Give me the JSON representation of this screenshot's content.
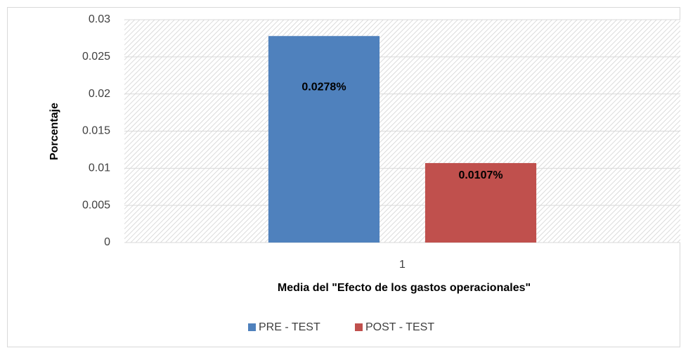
{
  "chart_data": {
    "type": "bar",
    "x_label": "Media del \"Efecto de los gastos operacionales\"",
    "y_label": "Porcentaje",
    "categories": [
      "1"
    ],
    "series": [
      {
        "name": "PRE - TEST",
        "color": "#4f81bd",
        "values": [
          0.0278
        ],
        "value_labels": [
          "0.0278%"
        ]
      },
      {
        "name": "POST - TEST",
        "color": "#c0504d",
        "values": [
          0.0107
        ],
        "value_labels": [
          "0.0107%"
        ]
      }
    ],
    "ylim": [
      0,
      0.03
    ],
    "yticks": [
      0,
      0.005,
      0.01,
      0.015,
      0.02,
      0.025,
      0.03
    ],
    "grid": true,
    "legend": "bottom"
  }
}
